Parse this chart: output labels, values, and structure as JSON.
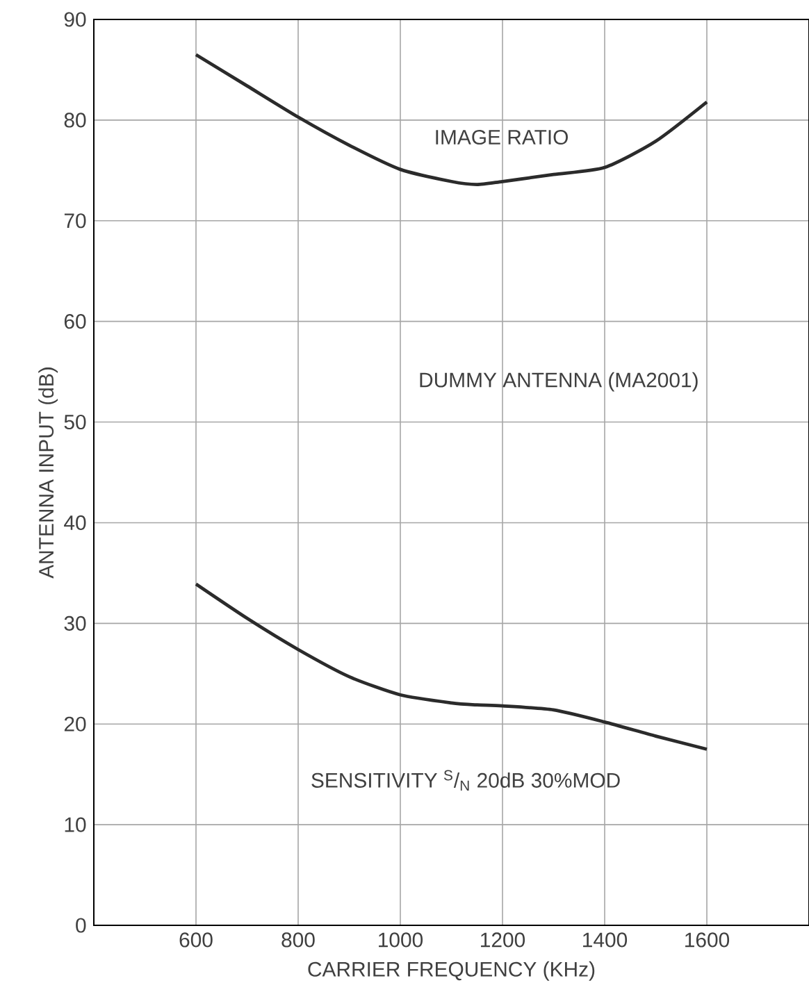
{
  "chart_data": {
    "type": "line",
    "xlabel": "CARRIER FREQUENCY (KHz)",
    "ylabel": "ANTENNA INPUT (dB)",
    "x": [
      600,
      700,
      800,
      900,
      1000,
      1100,
      1150,
      1200,
      1300,
      1400,
      1500,
      1600
    ],
    "series": [
      {
        "color": "#2b2b2b",
        "values": [
          86.5,
          83.4,
          80.3,
          77.5,
          75.1,
          73.9,
          73.6,
          73.9,
          74.6,
          75.3,
          77.9,
          81.8
        ]
      },
      {
        "color": "#2b2b2b",
        "values": [
          33.9,
          30.5,
          27.4,
          24.7,
          22.9,
          22.1,
          21.9,
          21.8,
          21.4,
          20.2,
          18.8,
          17.5
        ]
      }
    ],
    "xlim": [
      400,
      1800
    ],
    "ylim": [
      0,
      90
    ],
    "xticks": [
      600,
      800,
      1000,
      1200,
      1400,
      1600
    ],
    "yticks": [
      0,
      10,
      20,
      30,
      40,
      50,
      60,
      70,
      80,
      90
    ],
    "grid": true,
    "marker": "none",
    "line_style": "solid",
    "annotations": [
      "IMAGE RATIO",
      "DUMMY ANTENNA (MA2001)",
      "SENSITIVITY $^{S}$/$_{N}$ 20dB 30%MOD"
    ]
  }
}
